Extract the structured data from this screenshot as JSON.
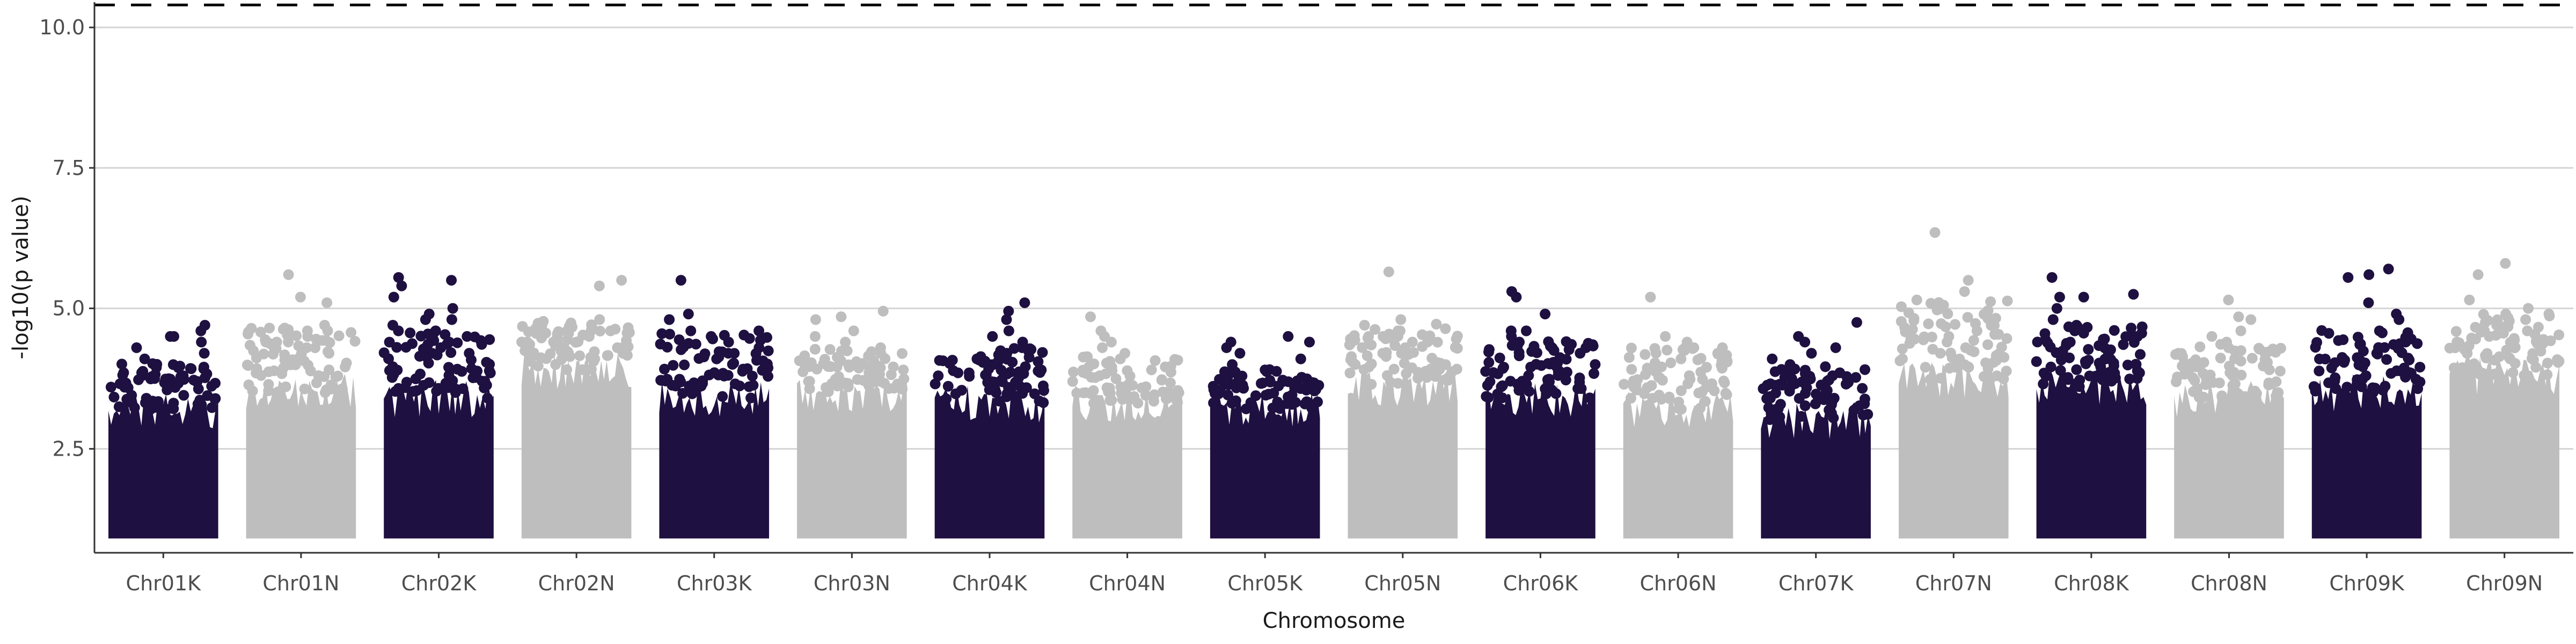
{
  "chart_data": {
    "type": "scatter",
    "subtype": "manhattan",
    "title": "",
    "xlabel": "Chromosome",
    "ylabel": "-log10(p value)",
    "ylim": [
      0.65,
      10.45
    ],
    "yticks": [
      2.5,
      5.0,
      7.5,
      10.0
    ],
    "ytick_labels": [
      "2.5",
      "5.0",
      "7.5",
      "10.0"
    ],
    "horizontal_gridlines": true,
    "significance_threshold": 10.4,
    "colors": {
      "odd": "#1e1040",
      "even": "#bebebe"
    },
    "point_floor": 1.0,
    "categories": [
      "Chr01K",
      "Chr01N",
      "Chr02K",
      "Chr02N",
      "Chr03K",
      "Chr03N",
      "Chr04K",
      "Chr04N",
      "Chr05K",
      "Chr05N",
      "Chr06K",
      "Chr06N",
      "Chr07K",
      "Chr07N",
      "Chr08K",
      "Chr08N",
      "Chr09K",
      "Chr09N"
    ],
    "series": [
      {
        "name": "Chr01K",
        "color_index": 0,
        "base_top": 3.2,
        "max": 4.7,
        "outliers": [
          4.7,
          4.6,
          4.4,
          4.2,
          4.5,
          4.3,
          4.1,
          4.5
        ]
      },
      {
        "name": "Chr01N",
        "color_index": 1,
        "base_top": 3.5,
        "max": 5.6,
        "outliers": [
          5.6,
          5.1,
          5.2,
          4.6,
          4.4,
          4.7,
          4.3,
          4.5,
          4.4,
          4.2
        ]
      },
      {
        "name": "Chr02K",
        "color_index": 0,
        "base_top": 3.4,
        "max": 5.55,
        "outliers": [
          5.55,
          5.5,
          5.4,
          5.2,
          5.0,
          4.8,
          4.9,
          4.6,
          4.5,
          4.7,
          4.4,
          4.3,
          4.8,
          4.6
        ]
      },
      {
        "name": "Chr02N",
        "color_index": 1,
        "base_top": 3.9,
        "max": 5.5,
        "outliers": [
          5.5,
          5.4,
          4.7,
          4.8,
          4.6,
          4.4,
          4.5,
          4.3
        ]
      },
      {
        "name": "Chr03K",
        "color_index": 0,
        "base_top": 3.4,
        "max": 5.5,
        "outliers": [
          5.5,
          4.9,
          4.8,
          4.6,
          4.4,
          4.5,
          4.3,
          4.2,
          4.6,
          4.1
        ]
      },
      {
        "name": "Chr03N",
        "color_index": 1,
        "base_top": 3.5,
        "max": 4.95,
        "outliers": [
          4.95,
          4.85,
          4.8,
          4.5,
          4.3,
          4.4,
          4.2,
          4.6
        ]
      },
      {
        "name": "Chr04K",
        "color_index": 0,
        "base_top": 3.3,
        "max": 5.1,
        "outliers": [
          5.1,
          4.95,
          4.8,
          4.6,
          4.3,
          4.4,
          4.2,
          4.5,
          4.1
        ]
      },
      {
        "name": "Chr04N",
        "color_index": 1,
        "base_top": 3.3,
        "max": 4.85,
        "outliers": [
          4.85,
          4.6,
          4.4,
          4.3,
          4.2,
          4.5,
          4.1
        ]
      },
      {
        "name": "Chr05K",
        "color_index": 0,
        "base_top": 3.2,
        "max": 4.5,
        "outliers": [
          4.5,
          4.4,
          4.3,
          4.2,
          4.1,
          4.4,
          4.0
        ]
      },
      {
        "name": "Chr05N",
        "color_index": 1,
        "base_top": 3.6,
        "max": 5.65,
        "outliers": [
          5.65,
          4.8,
          4.7,
          4.5,
          4.4,
          4.6,
          4.3,
          4.2
        ]
      },
      {
        "name": "Chr06K",
        "color_index": 0,
        "base_top": 3.4,
        "max": 5.3,
        "outliers": [
          5.3,
          5.2,
          4.9,
          4.6,
          4.5,
          4.4,
          4.3,
          4.2,
          4.6
        ]
      },
      {
        "name": "Chr06N",
        "color_index": 1,
        "base_top": 3.2,
        "max": 5.2,
        "outliers": [
          5.2,
          4.5,
          4.3,
          4.2,
          4.1,
          4.4
        ]
      },
      {
        "name": "Chr07K",
        "color_index": 0,
        "base_top": 3.0,
        "max": 4.75,
        "outliers": [
          4.75,
          4.5,
          4.4,
          4.3,
          4.2,
          4.1,
          4.0,
          3.9
        ]
      },
      {
        "name": "Chr07N",
        "color_index": 1,
        "base_top": 3.7,
        "max": 6.35,
        "outliers": [
          6.35,
          5.5,
          5.3,
          5.15,
          4.6,
          4.5,
          4.4,
          4.3,
          4.2
        ]
      },
      {
        "name": "Chr08K",
        "color_index": 0,
        "base_top": 3.6,
        "max": 5.55,
        "outliers": [
          5.55,
          5.25,
          5.2,
          5.2,
          5.0,
          4.8,
          4.7,
          4.6,
          4.5,
          4.4
        ]
      },
      {
        "name": "Chr08N",
        "color_index": 1,
        "base_top": 3.4,
        "max": 5.15,
        "outliers": [
          5.15,
          4.85,
          4.8,
          4.6,
          4.5,
          4.4,
          4.3
        ]
      },
      {
        "name": "Chr09K",
        "color_index": 0,
        "base_top": 3.5,
        "max": 5.7,
        "outliers": [
          5.7,
          5.6,
          5.55,
          5.1,
          4.9,
          4.8,
          4.6,
          4.5,
          4.4
        ]
      },
      {
        "name": "Chr09N",
        "color_index": 1,
        "base_top": 3.8,
        "max": 5.8,
        "outliers": [
          5.8,
          5.6,
          5.15,
          5.0,
          4.9,
          4.8,
          4.7,
          4.6,
          4.5
        ]
      }
    ]
  }
}
